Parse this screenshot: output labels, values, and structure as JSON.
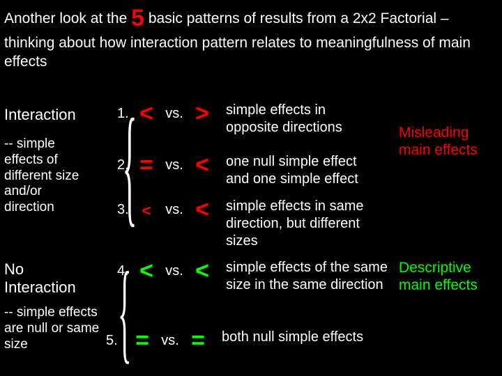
{
  "title": {
    "pre": "Another look at the ",
    "big": "5",
    "post": " basic patterns of results from a 2x2 Factorial – thinking about how interaction pattern relates to meaningfulness of main effects"
  },
  "left": {
    "interaction": "Interaction",
    "interaction_sub": "-- simple effects of different size and/or direction",
    "nointeraction": "No Interaction",
    "nointeraction_sub": "-- simple effects are null or same size"
  },
  "rows": {
    "r1": {
      "n": "1.",
      "a": "<",
      "vs": "vs.",
      "b": ">",
      "desc": "simple effects in\n opposite directions",
      "color_a": "#ff0000",
      "color_b": "#ff0000",
      "size": "big"
    },
    "r2": {
      "n": "2.",
      "a": "=",
      "vs": "vs.",
      "b": "<",
      "desc": "one null simple effect\n and one simple effect",
      "color_a": "#ff0000",
      "color_b": "#ff0000",
      "size": "big"
    },
    "r3": {
      "n": "3.",
      "a": "<",
      "vs": "vs.",
      "b": "<",
      "desc": "simple effects in same\n direction, but different\n sizes",
      "color_a": "#ff0000",
      "color_b": "#ff0000",
      "size": "small"
    },
    "r4": {
      "n": "4.",
      "a": "<",
      "vs": "vs.",
      "b": "<",
      "desc": "simple effects of the same size in the same direction",
      "color_a": "#00ff00",
      "color_b": "#00ff00",
      "size": "big"
    },
    "r5": {
      "n": "5.",
      "a": "=",
      "vs": "vs.",
      "b": "=",
      "desc": "both null simple effects",
      "color_a": "#00ff00",
      "color_b": "#00ff00",
      "size": "big"
    }
  },
  "annots": {
    "a1": "Misleading main effects",
    "a2": "Descriptive main effects"
  },
  "colors": {
    "bg": "#000000",
    "text": "#ffffff",
    "red": "#ff0000",
    "green": "#00ff00"
  }
}
